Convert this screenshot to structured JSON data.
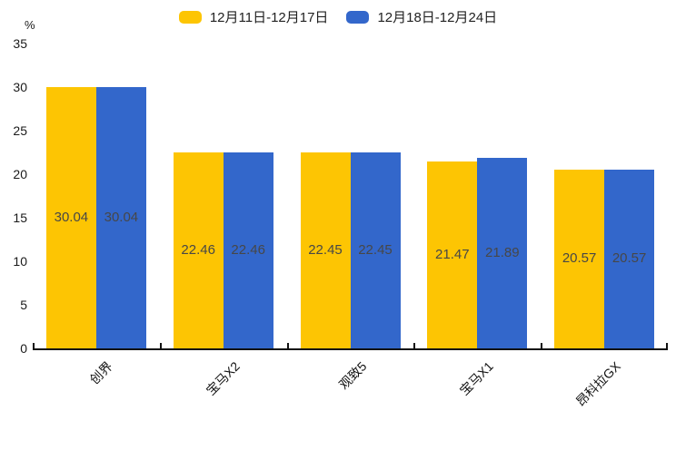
{
  "chart_data": {
    "type": "bar",
    "title": "",
    "unit_label": "%",
    "categories": [
      "创界",
      "宝马X2",
      "观致5",
      "宝马X1",
      "昂科拉GX"
    ],
    "series": [
      {
        "name": "12月11日-12月17日",
        "color": "#FDC503",
        "values": [
          30.04,
          22.46,
          22.45,
          21.47,
          20.57
        ]
      },
      {
        "name": "12月18日-12月24日",
        "color": "#3367CB",
        "values": [
          30.04,
          22.46,
          22.45,
          21.89,
          20.57
        ]
      }
    ],
    "ylim": [
      0,
      35
    ],
    "y_ticks": [
      0,
      5,
      10,
      15,
      20,
      25,
      30,
      35
    ],
    "grid": false,
    "legend_position": "top",
    "value_labels": "inside-middle",
    "value_label_color": "#474747"
  }
}
